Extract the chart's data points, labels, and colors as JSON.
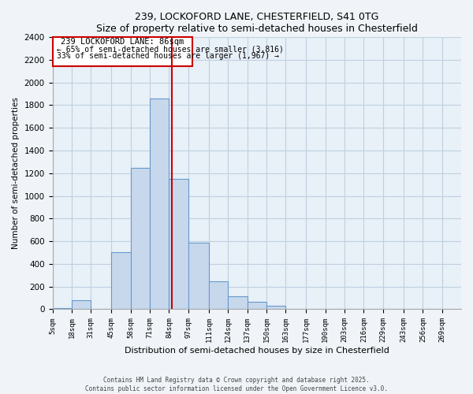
{
  "title": "239, LOCKOFORD LANE, CHESTERFIELD, S41 0TG",
  "subtitle": "Size of property relative to semi-detached houses in Chesterfield",
  "xlabel": "Distribution of semi-detached houses by size in Chesterfield",
  "ylabel": "Number of semi-detached properties",
  "bin_labels": [
    "5sqm",
    "18sqm",
    "31sqm",
    "45sqm",
    "58sqm",
    "71sqm",
    "84sqm",
    "97sqm",
    "111sqm",
    "124sqm",
    "137sqm",
    "150sqm",
    "163sqm",
    "177sqm",
    "190sqm",
    "203sqm",
    "216sqm",
    "229sqm",
    "243sqm",
    "256sqm",
    "269sqm"
  ],
  "bin_edges": [
    5,
    18,
    31,
    45,
    58,
    71,
    84,
    97,
    111,
    124,
    137,
    150,
    163,
    177,
    190,
    203,
    216,
    229,
    243,
    256,
    269,
    282
  ],
  "bar_heights": [
    10,
    80,
    5,
    500,
    1250,
    1860,
    1150,
    590,
    245,
    115,
    65,
    30,
    5,
    0,
    0,
    0,
    0,
    0,
    0,
    0,
    0
  ],
  "bar_color": "#c8d8ec",
  "bar_edge_color": "#6699cc",
  "property_sqm": 86,
  "vline_color": "#cc0000",
  "annotation_box_edge": "#cc0000",
  "annotation_line1": "239 LOCKOFORD LANE: 86sqm",
  "annotation_line2": "← 65% of semi-detached houses are smaller (3,816)",
  "annotation_line3": "33% of semi-detached houses are larger (1,967) →",
  "ylim": [
    0,
    2400
  ],
  "yticks": [
    0,
    200,
    400,
    600,
    800,
    1000,
    1200,
    1400,
    1600,
    1800,
    2000,
    2200,
    2400
  ],
  "footer1": "Contains HM Land Registry data © Crown copyright and database right 2025.",
  "footer2": "Contains public sector information licensed under the Open Government Licence v3.0.",
  "bg_color": "#f0f4f8",
  "plot_bg_color": "#e8f0f8",
  "grid_color": "#c0d0e0"
}
